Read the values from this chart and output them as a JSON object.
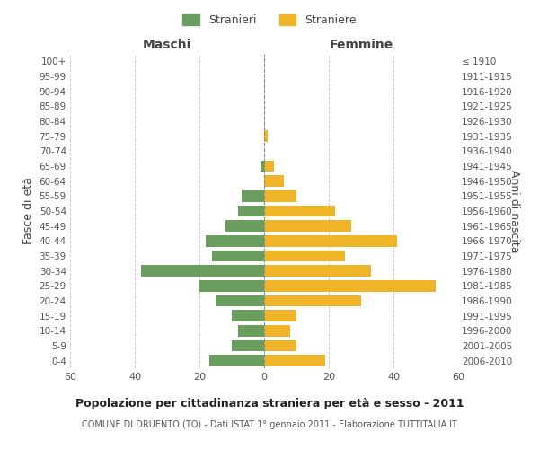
{
  "age_groups": [
    "0-4",
    "5-9",
    "10-14",
    "15-19",
    "20-24",
    "25-29",
    "30-34",
    "35-39",
    "40-44",
    "45-49",
    "50-54",
    "55-59",
    "60-64",
    "65-69",
    "70-74",
    "75-79",
    "80-84",
    "85-89",
    "90-94",
    "95-99",
    "100+"
  ],
  "birth_years": [
    "2006-2010",
    "2001-2005",
    "1996-2000",
    "1991-1995",
    "1986-1990",
    "1981-1985",
    "1976-1980",
    "1971-1975",
    "1966-1970",
    "1961-1965",
    "1956-1960",
    "1951-1955",
    "1946-1950",
    "1941-1945",
    "1936-1940",
    "1931-1935",
    "1926-1930",
    "1921-1925",
    "1916-1920",
    "1911-1915",
    "≤ 1910"
  ],
  "maschi": [
    17,
    10,
    8,
    10,
    15,
    20,
    38,
    16,
    18,
    12,
    8,
    7,
    0,
    1,
    0,
    0,
    0,
    0,
    0,
    0,
    0
  ],
  "femmine": [
    19,
    10,
    8,
    10,
    30,
    53,
    33,
    25,
    41,
    27,
    22,
    10,
    6,
    3,
    0,
    1,
    0,
    0,
    0,
    0,
    0
  ],
  "color_maschi": "#6a9e5e",
  "color_femmine": "#f0b429",
  "xlim": 60,
  "title": "Popolazione per cittadinanza straniera per età e sesso - 2011",
  "subtitle": "COMUNE DI DRUENTO (TO) - Dati ISTAT 1° gennaio 2011 - Elaborazione TUTTITALIA.IT",
  "ylabel_left": "Fasce di età",
  "ylabel_right": "Anni di nascita",
  "xlabel_maschi": "Maschi",
  "xlabel_femmine": "Femmine",
  "legend_stranieri": "Stranieri",
  "legend_straniere": "Straniere",
  "background_color": "#ffffff",
  "grid_color": "#cccccc"
}
